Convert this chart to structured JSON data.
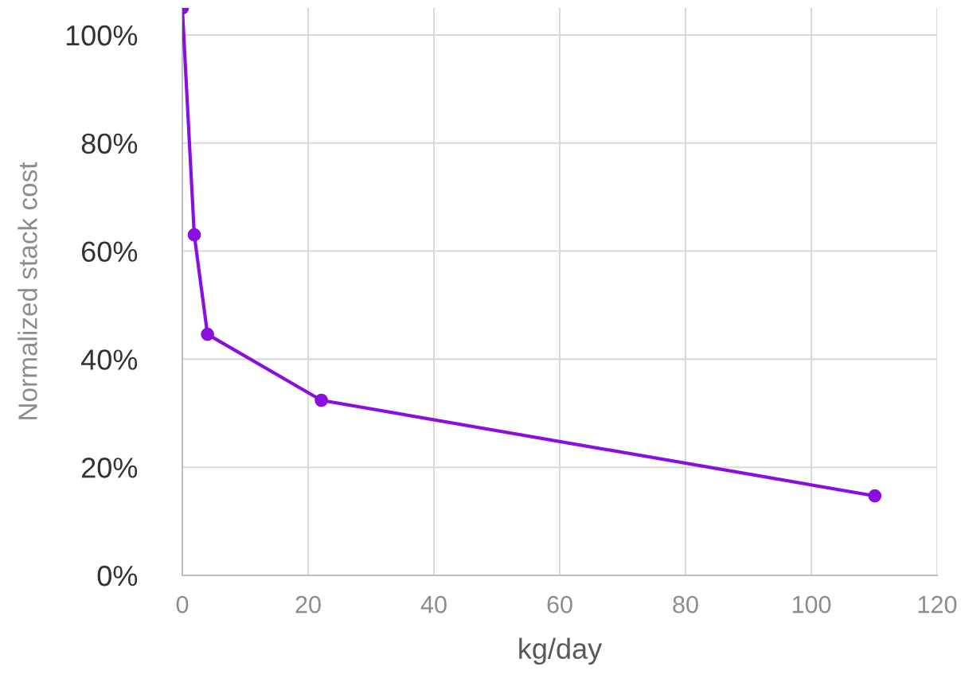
{
  "chart_data": {
    "type": "line",
    "xlabel": "kg/day",
    "ylabel": "Normalized stack cost",
    "xlim": [
      0,
      120
    ],
    "xticks": [
      0,
      20,
      40,
      60,
      80,
      100,
      120
    ],
    "ylim": [
      0,
      105
    ],
    "yticks": [
      {
        "value": 0,
        "label": "0%"
      },
      {
        "value": 20,
        "label": "20%"
      },
      {
        "value": 40,
        "label": "40%"
      },
      {
        "value": 60,
        "label": "60%"
      },
      {
        "value": 80,
        "label": "80%"
      },
      {
        "value": 100,
        "label": "100%"
      }
    ],
    "grid": true,
    "legend": false,
    "series": [
      {
        "color": "#8a0ee0",
        "marker": "circle",
        "x": [
          0,
          1.9,
          4.0,
          22.1,
          110.1
        ],
        "values": [
          105,
          63,
          44.6,
          32.4,
          14.7
        ]
      }
    ]
  }
}
